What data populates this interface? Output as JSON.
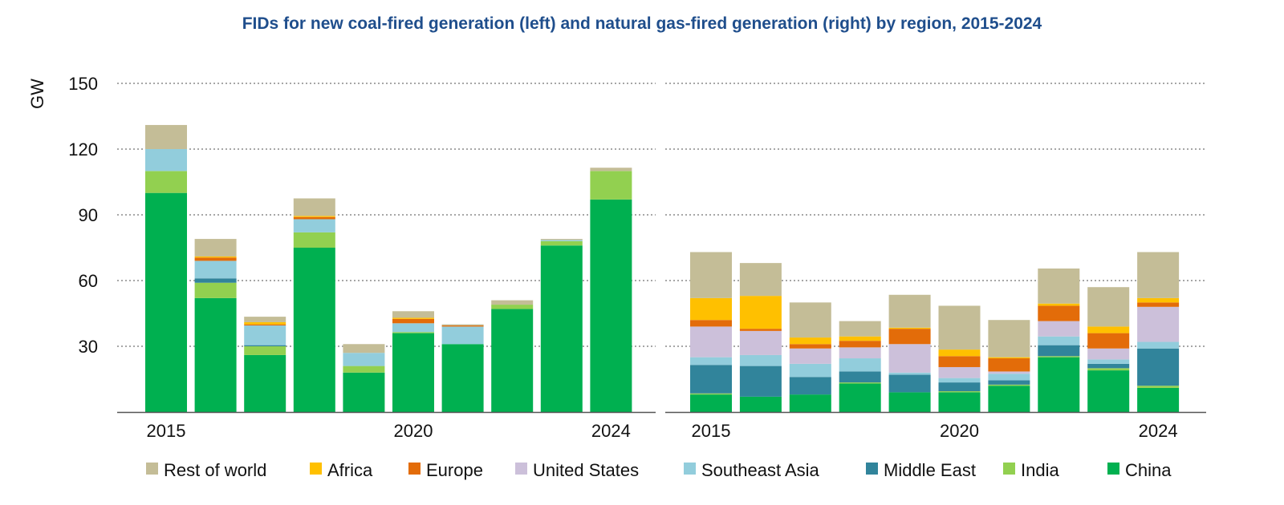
{
  "chart_data": {
    "type": "bar",
    "stacked": true,
    "title": "FIDs for new coal-fired generation (left) and natural gas-fired generation (right) by region, 2015-2024",
    "ylabel": "GW",
    "ylim": [
      0,
      150
    ],
    "yticks": [
      30,
      60,
      90,
      120,
      150
    ],
    "grid": true,
    "legend_position": "bottom",
    "series_names": [
      "China",
      "India",
      "Middle East",
      "Southeast Asia",
      "United States",
      "Europe",
      "Africa",
      "Rest of world"
    ],
    "legend_order": [
      "Rest of world",
      "Africa",
      "Europe",
      "United States",
      "Southeast Asia",
      "Middle East",
      "India",
      "China"
    ],
    "colors": {
      "China": "#00b050",
      "India": "#92d050",
      "Middle East": "#31849b",
      "Southeast Asia": "#92cddc",
      "United States": "#ccc0da",
      "Europe": "#e36c09",
      "Africa": "#ffc000",
      "Rest of world": "#c4bd97"
    },
    "panels": [
      {
        "name": "coal",
        "categories": [
          "2015",
          "2016",
          "2017",
          "2018",
          "2019",
          "2020",
          "2021",
          "2022",
          "2023",
          "2024"
        ],
        "tick_labels": [
          "2015",
          "2020",
          "2024"
        ],
        "series": [
          {
            "name": "China",
            "values": [
              100,
              52,
              26,
              75,
              18,
              36,
              31,
              47,
              76,
              97
            ]
          },
          {
            "name": "India",
            "values": [
              10,
              7,
              4,
              7,
              3,
              0.5,
              0,
              2,
              2,
              13
            ]
          },
          {
            "name": "Middle East",
            "values": [
              0,
              2,
              0.5,
              0,
              0,
              0,
              0,
              0,
              0,
              0
            ]
          },
          {
            "name": "Southeast Asia",
            "values": [
              10,
              8,
              9,
              6,
              6,
              4,
              8,
              0,
              0.5,
              0
            ]
          },
          {
            "name": "United States",
            "values": [
              0,
              0,
              0,
              0,
              0,
              0,
              0,
              0,
              0,
              0
            ]
          },
          {
            "name": "Europe",
            "values": [
              0,
              1.5,
              0.5,
              1,
              0,
              2,
              0.5,
              0,
              0,
              0
            ]
          },
          {
            "name": "Africa",
            "values": [
              0,
              0.5,
              1,
              0.5,
              0,
              0.5,
              0,
              0,
              0,
              0
            ]
          },
          {
            "name": "Rest of world",
            "values": [
              11,
              8,
              2.5,
              8,
              4,
              3,
              0.5,
              2,
              0.5,
              1.5
            ]
          }
        ]
      },
      {
        "name": "gas",
        "categories": [
          "2015",
          "2016",
          "2017",
          "2018",
          "2019",
          "2020",
          "2021",
          "2022",
          "2023",
          "2024"
        ],
        "tick_labels": [
          "2015",
          "2020",
          "2024"
        ],
        "series": [
          {
            "name": "China",
            "values": [
              8,
              7,
              8,
              13,
              9,
              9,
              12,
              25,
              19,
              11
            ]
          },
          {
            "name": "India",
            "values": [
              0.5,
              0,
              0,
              0.5,
              0,
              0.5,
              0.5,
              0.5,
              1,
              1
            ]
          },
          {
            "name": "Middle East",
            "values": [
              13,
              14,
              8,
              5,
              8,
              4,
              2,
              5,
              2,
              17
            ]
          },
          {
            "name": "Southeast Asia",
            "values": [
              3.5,
              5,
              6,
              6,
              1,
              2,
              3,
              4,
              2,
              3
            ]
          },
          {
            "name": "United States",
            "values": [
              14,
              11,
              7,
              5,
              13,
              5,
              1,
              7,
              5,
              16
            ]
          },
          {
            "name": "Europe",
            "values": [
              3,
              1,
              2,
              3,
              7,
              5,
              6,
              7,
              7,
              2
            ]
          },
          {
            "name": "Africa",
            "values": [
              10,
              15,
              3,
              2,
              0.5,
              3,
              0.5,
              1,
              3,
              2
            ]
          },
          {
            "name": "Rest of world",
            "values": [
              21,
              15,
              16,
              7,
              15,
              20,
              17,
              16,
              18,
              21
            ]
          }
        ]
      }
    ]
  }
}
